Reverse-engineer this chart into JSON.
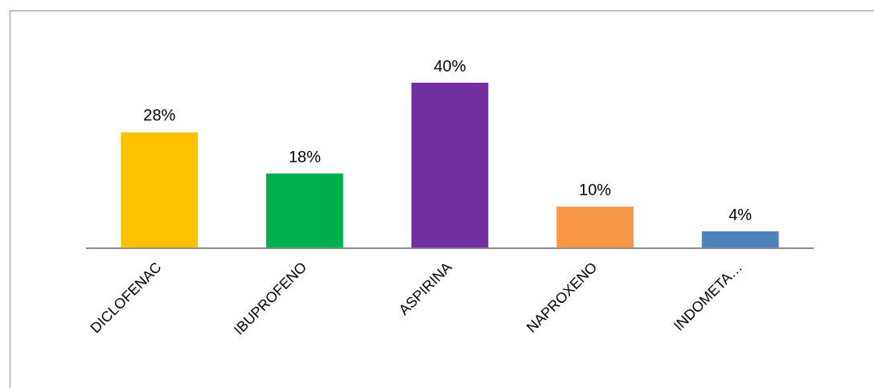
{
  "chart_data": {
    "type": "bar",
    "categories": [
      "DICLOFENAC",
      "IBUPROFENO",
      "ASPIRINA",
      "NAPROXENO",
      "INDOMETA…"
    ],
    "values": [
      28,
      18,
      40,
      10,
      4
    ],
    "colors": [
      "#ffc000",
      "#00b050",
      "#7030a0",
      "#f79646",
      "#4f81bd"
    ],
    "value_labels": [
      "28%",
      "18%",
      "40%",
      "10%",
      "4%"
    ],
    "grid": false,
    "legend": false
  }
}
